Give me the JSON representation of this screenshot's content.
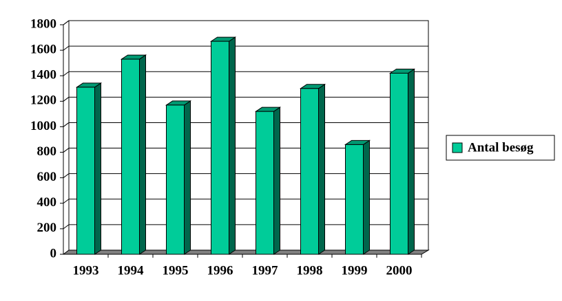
{
  "chart_data": {
    "type": "bar",
    "categories": [
      "1993",
      "1994",
      "1995",
      "1996",
      "1997",
      "1998",
      "1999",
      "2000"
    ],
    "series": [
      {
        "name": "Antal besøg",
        "color": "#00cc99",
        "values": [
          1310,
          1530,
          1170,
          1670,
          1120,
          1300,
          860,
          1420
        ]
      }
    ],
    "ylim": [
      0,
      1800
    ],
    "yticks": [
      0,
      200,
      400,
      600,
      800,
      1000,
      1200,
      1400,
      1600,
      1800
    ],
    "grid": true,
    "legend": "right"
  }
}
